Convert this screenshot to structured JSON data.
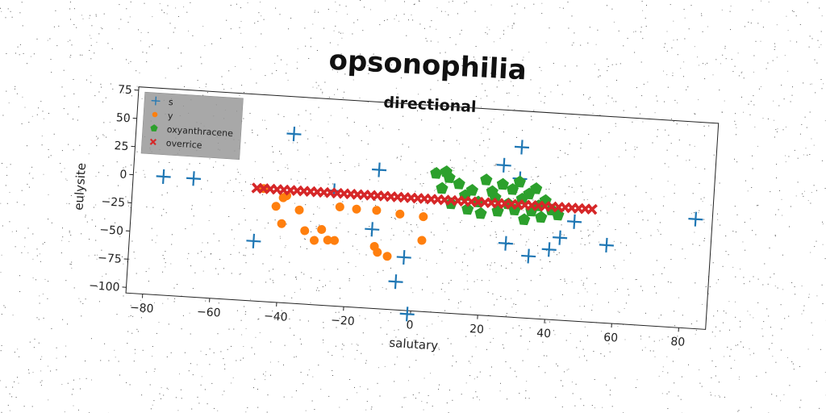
{
  "chart_data": {
    "type": "scatter",
    "title": "opsonophilia",
    "subtitle": "directional",
    "xlabel": "salutary",
    "ylabel": "eulysite",
    "xlim": [
      -85,
      88
    ],
    "ylim": [
      -105,
      78
    ],
    "xticks": [
      "−80",
      "−60",
      "−40",
      "−20",
      "0",
      "20",
      "40",
      "60",
      "80"
    ],
    "yticks": [
      "75",
      "50",
      "25",
      "0",
      "−25",
      "−50",
      "−75",
      "−100"
    ],
    "grid": false,
    "legend_position": "top-left",
    "series": [
      {
        "name": "s",
        "marker": "plus",
        "color": "#1f77b4",
        "points": [
          [
            -76,
            0
          ],
          [
            -67,
            0
          ],
          [
            -38,
            45
          ],
          [
            -48,
            -52
          ],
          [
            -25,
            -3
          ],
          [
            -12,
            18
          ],
          [
            -13,
            -35
          ],
          [
            -5,
            -80
          ],
          [
            -3,
            -58
          ],
          [
            -1,
            -108
          ],
          [
            25,
            29
          ],
          [
            30,
            46
          ],
          [
            30,
            18
          ],
          [
            27,
            -40
          ],
          [
            34,
            -50
          ],
          [
            40,
            -43
          ],
          [
            43,
            -32
          ],
          [
            47,
            -17
          ],
          [
            57,
            -36
          ],
          [
            83,
            -8
          ]
        ]
      },
      {
        "name": "y",
        "marker": "circle",
        "color": "#ff7f0e",
        "points": [
          [
            -46,
            -5
          ],
          [
            -42,
            -20
          ],
          [
            -39,
            -10
          ],
          [
            -40,
            -35
          ],
          [
            -35,
            -22
          ],
          [
            -33,
            -40
          ],
          [
            -30,
            -48
          ],
          [
            -28,
            -38
          ],
          [
            -26,
            -47
          ],
          [
            -24,
            -47
          ],
          [
            -23,
            -17
          ],
          [
            -18,
            -18
          ],
          [
            -12,
            -18
          ],
          [
            -12,
            -50
          ],
          [
            -11,
            -55
          ],
          [
            -8,
            -58
          ],
          [
            -5,
            -20
          ],
          [
            2,
            -21
          ],
          [
            2,
            -42
          ],
          [
            -40,
            -12
          ]
        ]
      },
      {
        "name": "oxyanthracene",
        "marker": "pentagon",
        "color": "#2ca02c",
        "points": [
          [
            5,
            18
          ],
          [
            8,
            20
          ],
          [
            9,
            15
          ],
          [
            12,
            10
          ],
          [
            14,
            0
          ],
          [
            16,
            5
          ],
          [
            18,
            -5
          ],
          [
            20,
            15
          ],
          [
            22,
            5
          ],
          [
            23,
            0
          ],
          [
            25,
            12
          ],
          [
            27,
            -5
          ],
          [
            28,
            8
          ],
          [
            29,
            -10
          ],
          [
            30,
            15
          ],
          [
            31,
            0
          ],
          [
            33,
            5
          ],
          [
            34,
            -10
          ],
          [
            35,
            10
          ],
          [
            36,
            -5
          ],
          [
            38,
            0
          ],
          [
            40,
            -8
          ],
          [
            42,
            -12
          ],
          [
            7,
            5
          ],
          [
            10,
            -8
          ],
          [
            15,
            -12
          ],
          [
            19,
            -15
          ],
          [
            24,
            -12
          ],
          [
            32,
            -18
          ],
          [
            37,
            -15
          ]
        ]
      },
      {
        "name": "overrice",
        "marker": "x",
        "color": "#d62728",
        "points": [
          [
            -48,
            -5
          ],
          [
            -46,
            -5
          ],
          [
            -44,
            -5
          ],
          [
            -42,
            -5
          ],
          [
            -40,
            -5
          ],
          [
            -38,
            -5
          ],
          [
            -36,
            -5
          ],
          [
            -34,
            -5
          ],
          [
            -32,
            -5
          ],
          [
            -30,
            -5
          ],
          [
            -28,
            -5
          ],
          [
            -26,
            -5
          ],
          [
            -24,
            -5
          ],
          [
            -22,
            -5
          ],
          [
            -20,
            -5
          ],
          [
            -18,
            -5
          ],
          [
            -16,
            -5
          ],
          [
            -14,
            -5
          ],
          [
            -12,
            -5
          ],
          [
            -10,
            -5
          ],
          [
            -8,
            -5
          ],
          [
            -6,
            -5
          ],
          [
            -4,
            -5
          ],
          [
            -2,
            -5
          ],
          [
            0,
            -5
          ],
          [
            2,
            -5
          ],
          [
            4,
            -5
          ],
          [
            6,
            -5
          ],
          [
            8,
            -5
          ],
          [
            10,
            -5
          ],
          [
            12,
            -5
          ],
          [
            14,
            -5
          ],
          [
            16,
            -5
          ],
          [
            18,
            -5
          ],
          [
            20,
            -5
          ],
          [
            22,
            -5
          ],
          [
            24,
            -5
          ],
          [
            26,
            -5
          ],
          [
            28,
            -5
          ],
          [
            30,
            -5
          ],
          [
            32,
            -5
          ],
          [
            34,
            -5
          ],
          [
            36,
            -5
          ],
          [
            38,
            -5
          ],
          [
            40,
            -5
          ],
          [
            42,
            -5
          ],
          [
            44,
            -5
          ],
          [
            46,
            -5
          ],
          [
            48,
            -5
          ],
          [
            50,
            -5
          ],
          [
            52,
            -5
          ]
        ]
      }
    ]
  }
}
